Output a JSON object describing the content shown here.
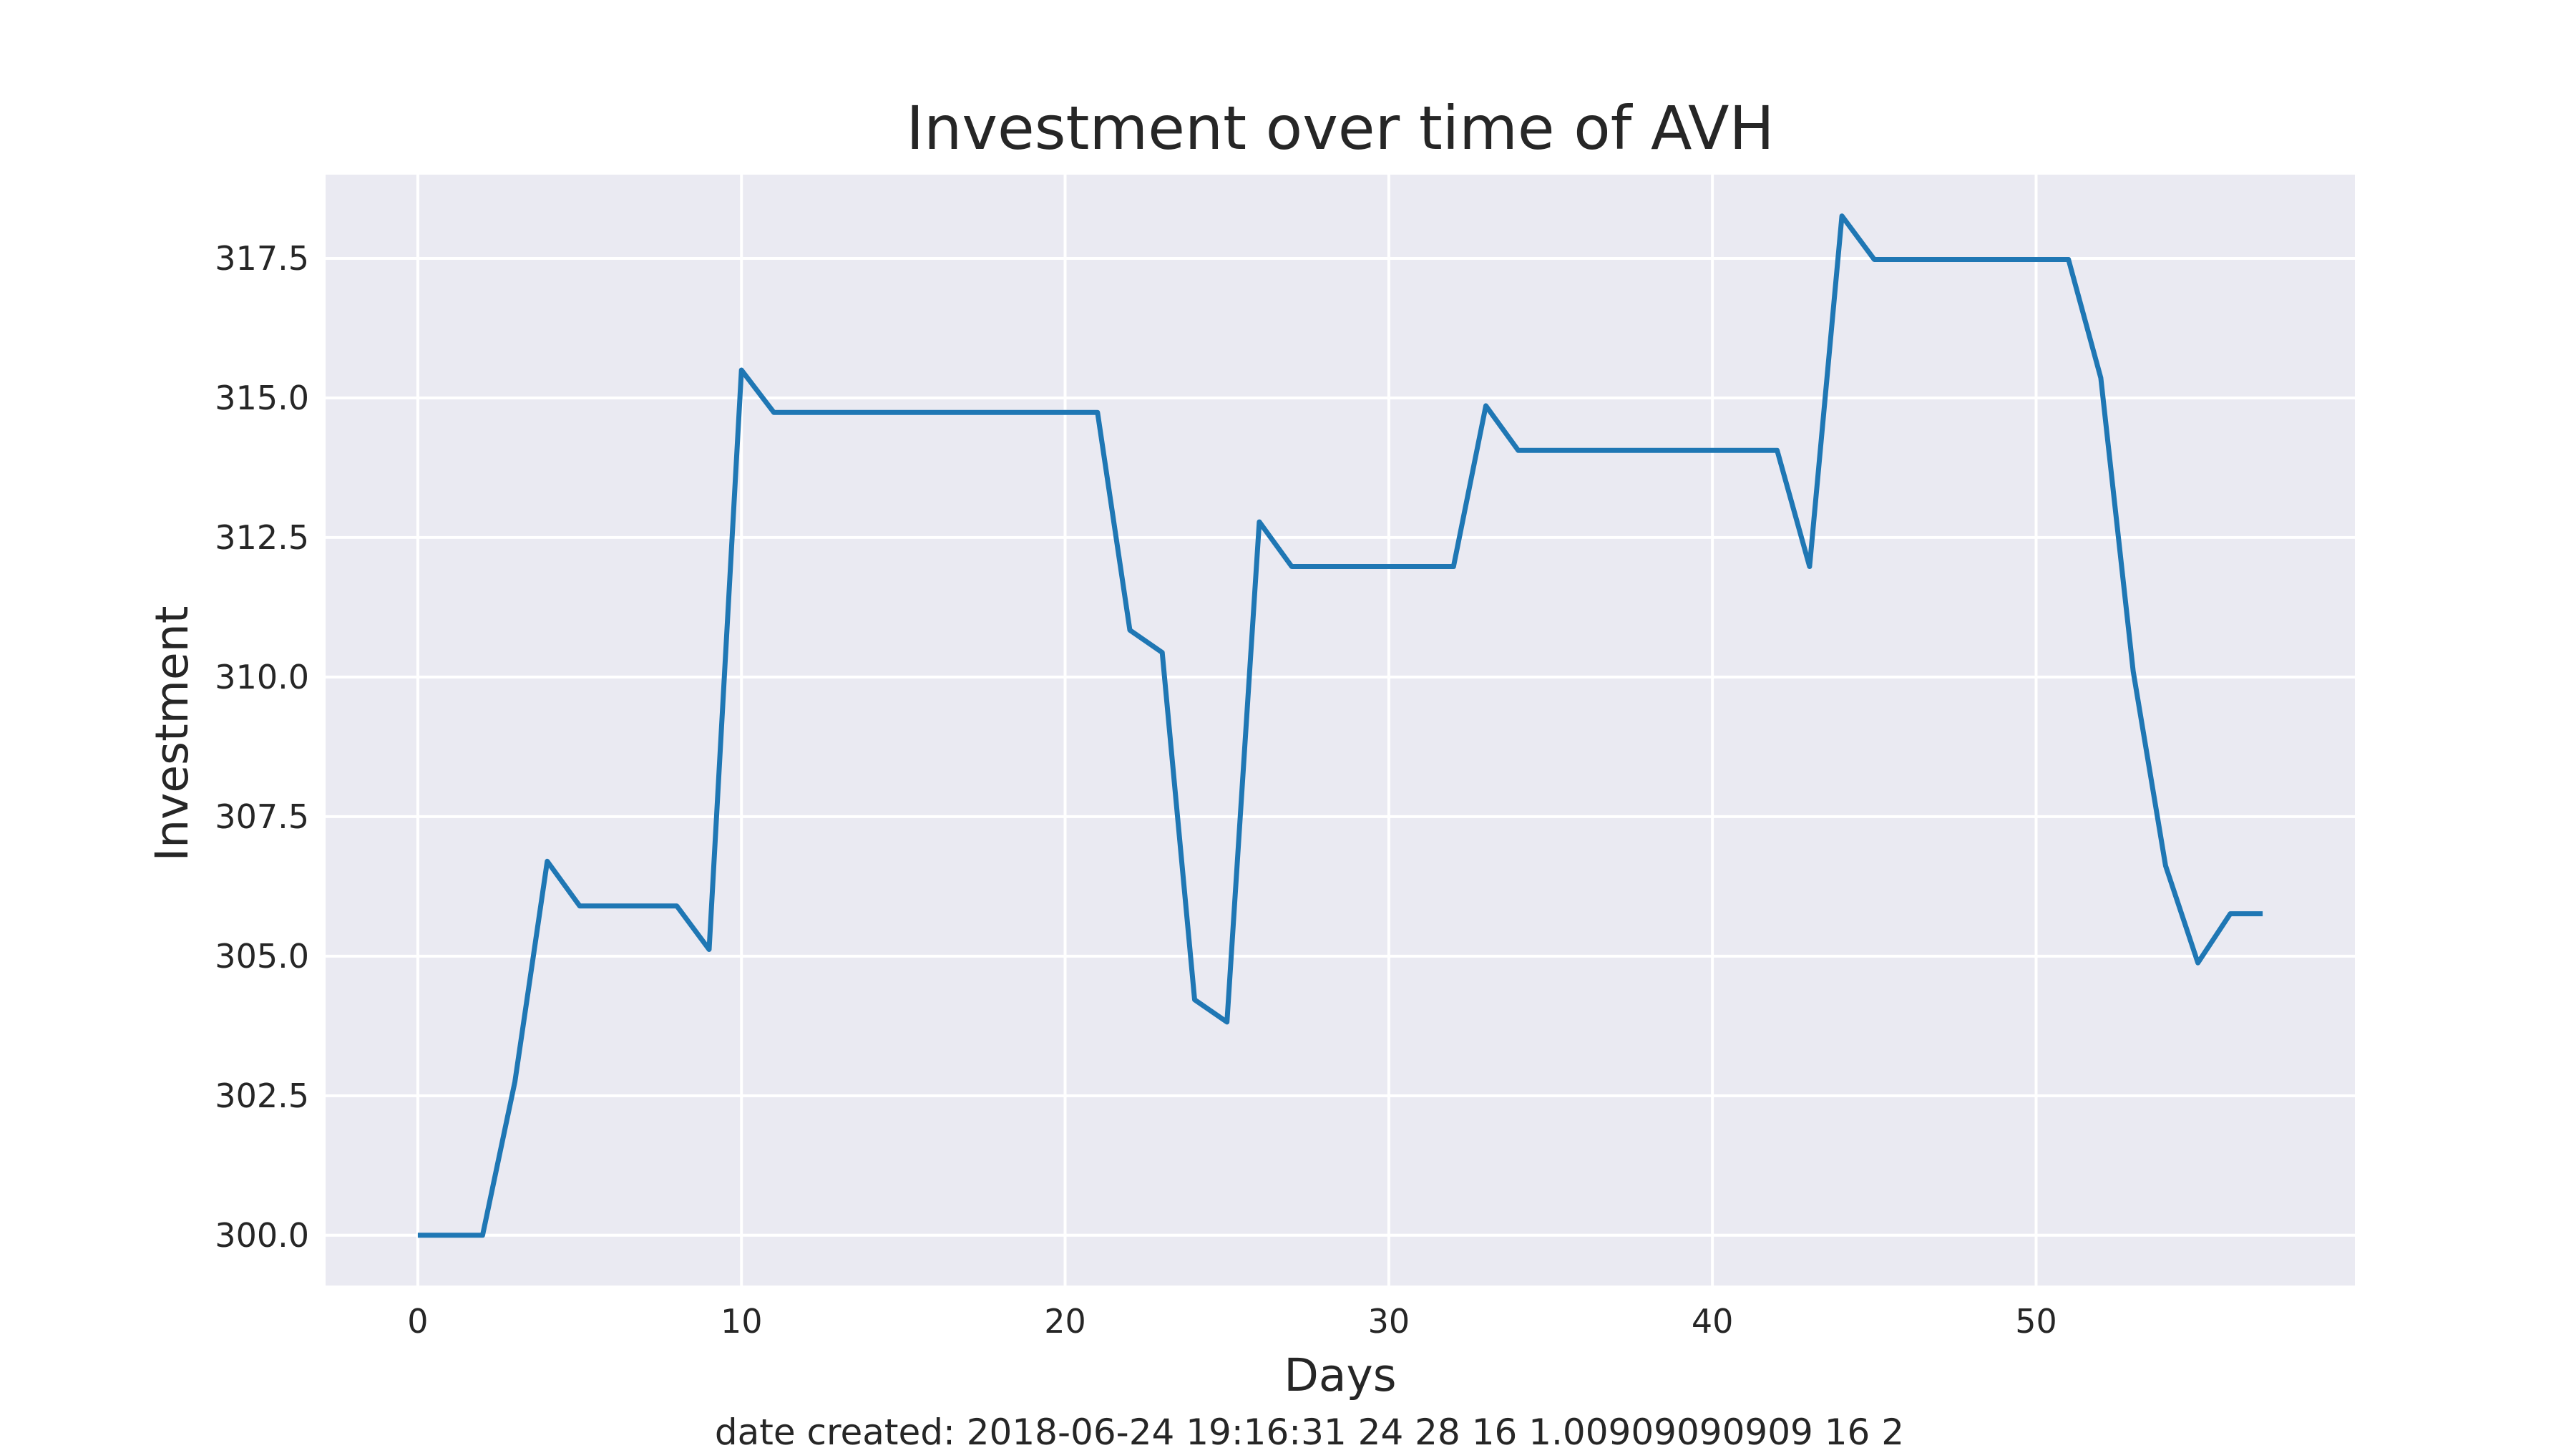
{
  "chart_data": {
    "type": "line",
    "title": "Investment over time of AVH",
    "xlabel": "Days",
    "ylabel": "Investment",
    "footer": "date created: 2018-06-24 19:16:31 24 28 16 1.00909090909 16 2",
    "xlim": [
      -2.85,
      59.85
    ],
    "ylim": [
      299.1,
      319.0
    ],
    "xticks": [
      0,
      10,
      20,
      30,
      40,
      50
    ],
    "xtick_labels": [
      "0",
      "10",
      "20",
      "30",
      "40",
      "50"
    ],
    "yticks": [
      300.0,
      302.5,
      305.0,
      307.5,
      310.0,
      312.5,
      315.0,
      317.5
    ],
    "ytick_labels": [
      "300.0",
      "302.5",
      "305.0",
      "307.5",
      "310.0",
      "312.5",
      "315.0",
      "317.5"
    ],
    "grid": true,
    "background_color": "#eaeaf2",
    "grid_color": "#ffffff",
    "series": [
      {
        "color": "#1f77b4",
        "x": [
          0,
          1,
          2,
          3,
          4,
          5,
          6,
          7,
          8,
          9,
          10,
          11,
          12,
          13,
          14,
          15,
          16,
          17,
          18,
          19,
          20,
          21,
          22,
          23,
          24,
          25,
          26,
          27,
          28,
          29,
          30,
          31,
          32,
          33,
          34,
          35,
          36,
          37,
          38,
          39,
          40,
          41,
          42,
          43,
          44,
          45,
          46,
          47,
          48,
          49,
          50,
          51,
          52,
          53,
          54,
          55,
          56,
          57
        ],
        "values": [
          300.0,
          300.0,
          300.0,
          302.75,
          306.7,
          305.9,
          305.9,
          305.9,
          305.9,
          305.12,
          315.5,
          314.74,
          314.74,
          314.74,
          314.74,
          314.74,
          314.74,
          314.74,
          314.74,
          314.74,
          314.74,
          314.74,
          310.84,
          310.44,
          304.22,
          303.82,
          312.78,
          311.98,
          311.98,
          311.98,
          311.98,
          311.98,
          311.98,
          314.86,
          314.06,
          314.06,
          314.06,
          314.06,
          314.06,
          314.06,
          314.06,
          314.06,
          314.06,
          311.98,
          318.26,
          317.48,
          317.48,
          317.48,
          317.48,
          317.48,
          317.48,
          317.48,
          315.36,
          310.1,
          306.62,
          304.88,
          305.76,
          305.76
        ]
      }
    ]
  }
}
